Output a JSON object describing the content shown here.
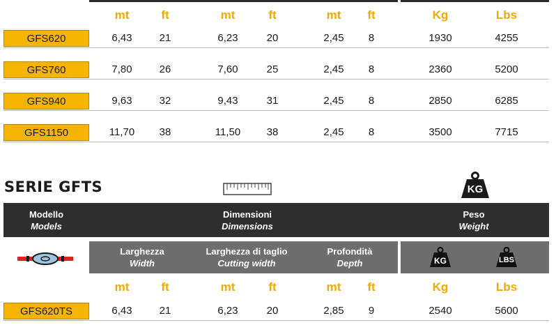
{
  "top_units": {
    "mt1": "mt",
    "ft1": "ft",
    "mt2": "mt",
    "ft2": "ft",
    "mt3": "mt",
    "ft3": "ft",
    "kg": "Kg",
    "lbs": "Lbs"
  },
  "rows": [
    {
      "model": "GFS620",
      "w_mt": "6,43",
      "w_ft": "21",
      "c_mt": "6,23",
      "c_ft": "20",
      "d_mt": "2,45",
      "d_ft": "8",
      "kg": "1930",
      "lbs": "4255"
    },
    {
      "model": "GFS760",
      "w_mt": "7,80",
      "w_ft": "26",
      "c_mt": "7,60",
      "c_ft": "25",
      "d_mt": "2,45",
      "d_ft": "8",
      "kg": "2360",
      "lbs": "5200"
    },
    {
      "model": "GFS940",
      "w_mt": "9,63",
      "w_ft": "32",
      "c_mt": "9,43",
      "c_ft": "31",
      "d_mt": "2,45",
      "d_ft": "8",
      "kg": "2850",
      "lbs": "6285"
    },
    {
      "model": "GFS1150",
      "w_mt": "11,70",
      "w_ft": "38",
      "c_mt": "11,50",
      "c_ft": "38",
      "d_mt": "2,45",
      "d_ft": "8",
      "kg": "3500",
      "lbs": "7715"
    }
  ],
  "section2": {
    "title": "SERIE GFTS",
    "kg_icon": "KG",
    "header": {
      "model_it": "Modello",
      "model_en": "Models",
      "dim_it": "Dimensioni",
      "dim_en": "Dimensions",
      "weight_it": "Peso",
      "weight_en": "Weight"
    },
    "subheader": {
      "width_it": "Larghezza",
      "width_en": "Width",
      "cut_it": "Larghezza di taglio",
      "cut_en": "Cutting width",
      "depth_it": "Profondità",
      "depth_en": "Depth",
      "kg_badge": "KG",
      "lbs_badge": "LBS"
    },
    "units": {
      "mt1": "mt",
      "ft1": "ft",
      "mt2": "mt",
      "ft2": "ft",
      "mt3": "mt",
      "ft3": "ft",
      "kg": "Kg",
      "lbs": "Lbs"
    },
    "row": {
      "model": "GFS620TS",
      "w_mt": "6,43",
      "w_ft": "21",
      "c_mt": "6,23",
      "c_ft": "20",
      "d_mt": "2,85",
      "d_ft": "9",
      "kg": "2540",
      "lbs": "5600"
    }
  },
  "icons": {
    "ruler": "ruler-icon",
    "weight": "weight-icon",
    "mower": "mower-icon"
  },
  "colors": {
    "accent": "#f5b400",
    "unit_text": "#f2a900",
    "dark": "#2e2e2e",
    "grey": "#6e6e6e"
  }
}
